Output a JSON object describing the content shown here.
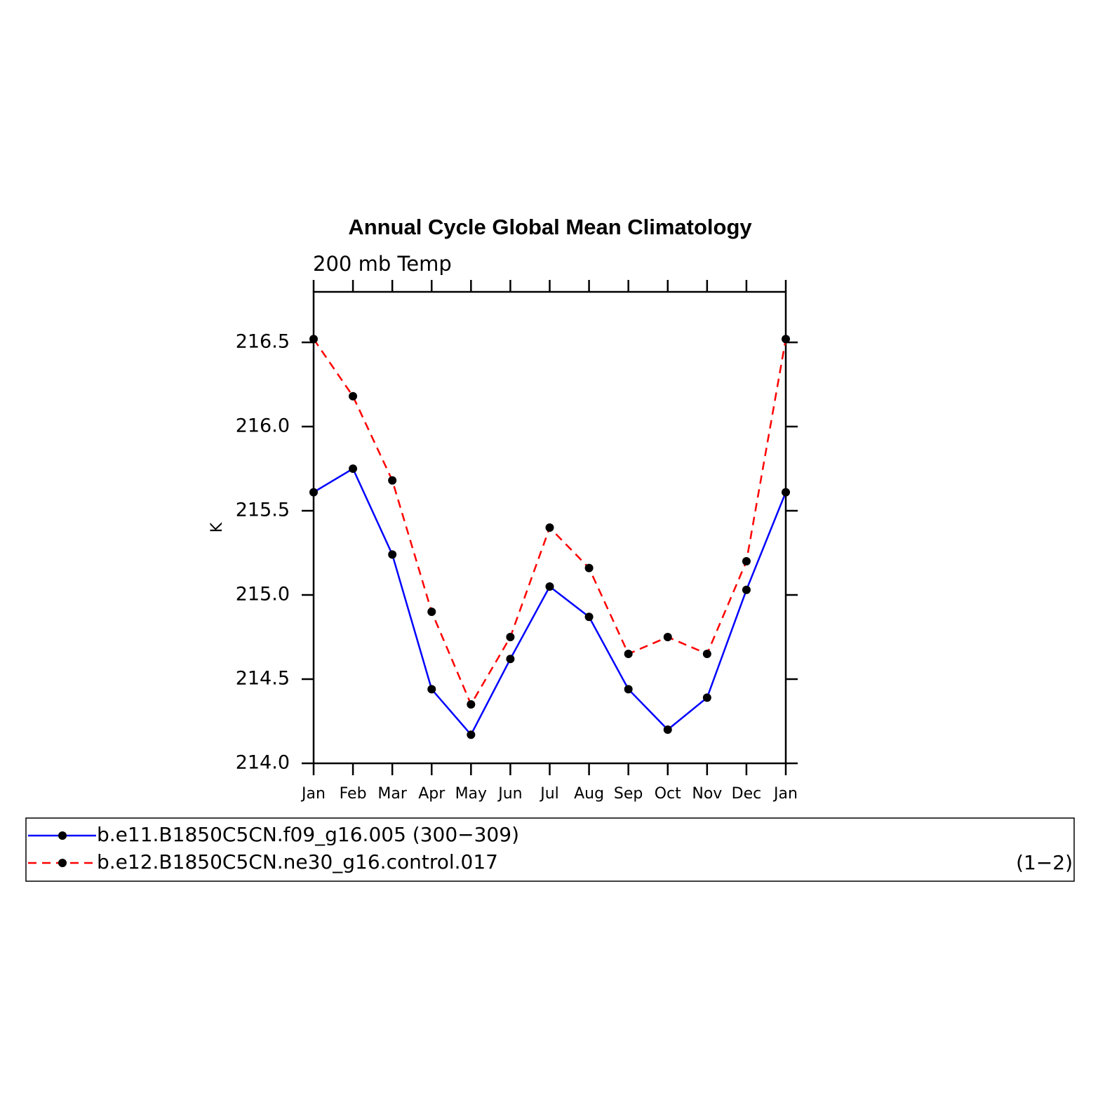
{
  "chart_data": {
    "type": "line",
    "title": "Annual Cycle Global Mean Climatology",
    "subtitle": "200 mb Temp",
    "y_label": "K",
    "legend_note": "(1−2)",
    "categories": [
      "Jan",
      "Feb",
      "Mar",
      "Apr",
      "May",
      "Jun",
      "Jul",
      "Aug",
      "Sep",
      "Oct",
      "Nov",
      "Dec",
      "Jan"
    ],
    "series": [
      {
        "name": "b.e11.B1850C5CN.f09_g16.005 (300−309)",
        "color": "#0000ff",
        "line_style": "solid",
        "marker_color": "#000000",
        "values": [
          215.61,
          215.75,
          215.24,
          214.44,
          214.17,
          214.62,
          215.05,
          214.87,
          214.44,
          214.2,
          214.39,
          215.03,
          215.61
        ]
      },
      {
        "name": "b.e12.B1850C5CN.ne30_g16.control.017",
        "color": "#ff0000",
        "line_style": "dashed",
        "marker_color": "#000000",
        "values": [
          216.52,
          216.18,
          215.68,
          214.9,
          214.35,
          214.75,
          215.4,
          215.16,
          214.65,
          214.75,
          214.65,
          215.2,
          216.52
        ]
      }
    ],
    "ylim": [
      214,
      216.8
    ],
    "yticks": [
      {
        "value": 214,
        "label": "214.0"
      },
      214.5,
      {
        "value": 215,
        "label": "215.0"
      },
      215.5,
      {
        "value": 216,
        "label": "216.0"
      },
      216.5
    ],
    "grid": false
  }
}
